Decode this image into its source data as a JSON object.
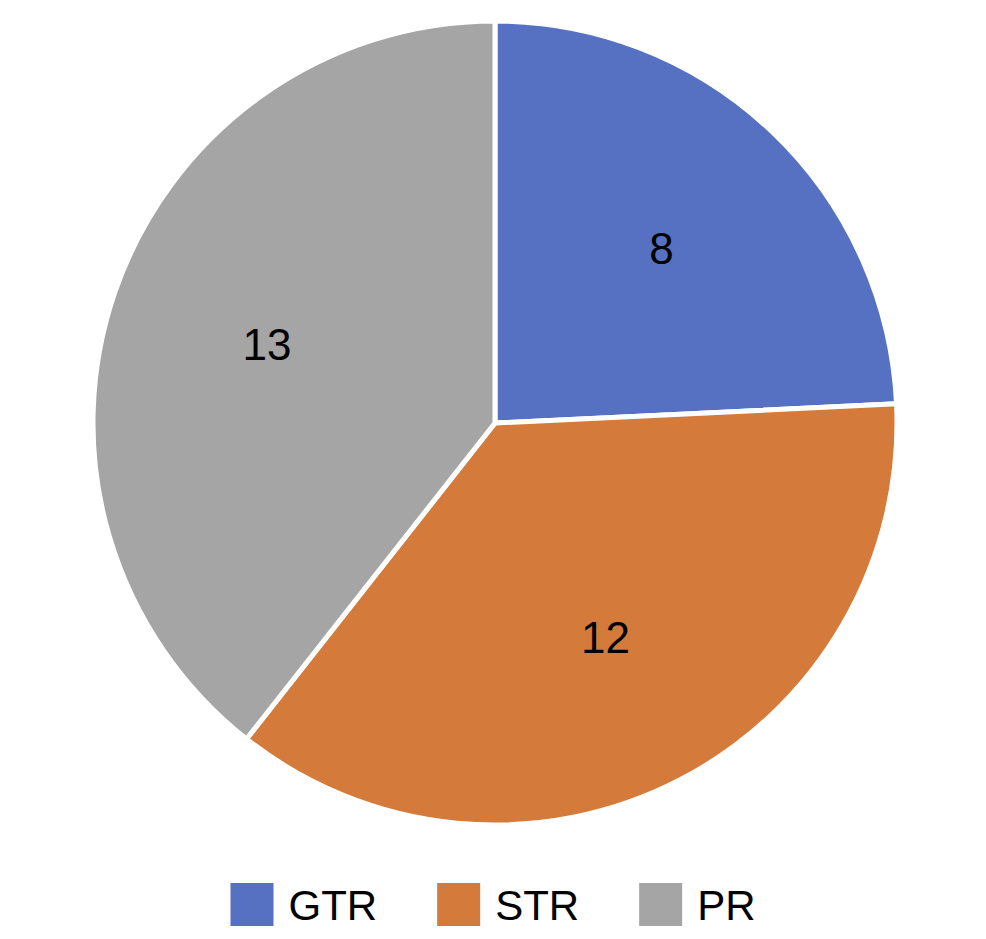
{
  "chart_data": {
    "type": "pie",
    "categories": [
      "GTR",
      "STR",
      "PR"
    ],
    "values": [
      8,
      12,
      13
    ],
    "colors": [
      "#5671c2",
      "#d47a3b",
      "#a5a5a5"
    ],
    "data_labels": true,
    "legend": "bottom"
  }
}
